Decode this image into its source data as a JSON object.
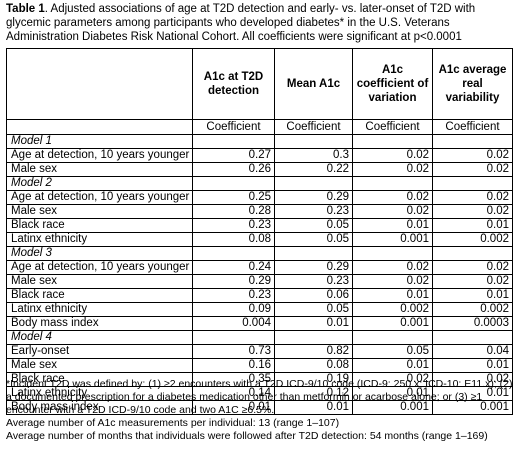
{
  "caption": {
    "label": "Table 1",
    "text": ". Adjusted associations of age at T2D detection and early- vs. later-onset of T2D with glycemic parameters among participants who developed diabetes* in the U.S. Veterans Administration Diabetes Risk National Cohort. All coefficients were significant at p<0.0001"
  },
  "columns": [
    "A1c at T2D detection",
    "Mean A1c",
    "A1c coefficient of variation",
    "A1c average real variability"
  ],
  "subheader": [
    "Coefficient",
    "Coefficient",
    "Coefficient",
    "Coefficient"
  ],
  "models": [
    {
      "name": "Model 1",
      "rows": [
        {
          "label": "Age at detection, 10 years younger",
          "values": [
            "0.27",
            "0.3",
            "0.02",
            "0.02"
          ]
        },
        {
          "label": "Male sex",
          "values": [
            "0.26",
            "0.22",
            "0.02",
            "0.02"
          ]
        }
      ]
    },
    {
      "name": "Model 2",
      "rows": [
        {
          "label": "Age at detection, 10 years younger",
          "values": [
            "0.25",
            "0.29",
            "0.02",
            "0.02"
          ]
        },
        {
          "label": "Male sex",
          "values": [
            "0.28",
            "0.23",
            "0.02",
            "0.02"
          ]
        },
        {
          "label": "Black race",
          "values": [
            "0.23",
            "0.05",
            "0.01",
            "0.01"
          ]
        },
        {
          "label": "Latinx ethnicity",
          "values": [
            "0.08",
            "0.05",
            "0.001",
            "0.002"
          ]
        }
      ]
    },
    {
      "name": "Model 3",
      "rows": [
        {
          "label": "Age at detection, 10 years younger",
          "values": [
            "0.24",
            "0.29",
            "0.02",
            "0.02"
          ]
        },
        {
          "label": "Male sex",
          "values": [
            "0.29",
            "0.23",
            "0.02",
            "0.02"
          ]
        },
        {
          "label": "Black race",
          "values": [
            "0.23",
            "0.06",
            "0.01",
            "0.01"
          ]
        },
        {
          "label": "Latinx ethnicity",
          "values": [
            "0.09",
            "0.05",
            "0.002",
            "0.002"
          ]
        },
        {
          "label": "Body mass index",
          "values": [
            "0.004",
            "0.01",
            "0.001",
            "0.0003"
          ]
        }
      ]
    },
    {
      "name": "Model 4",
      "rows": [
        {
          "label": "Early-onset",
          "values": [
            "0.73",
            "0.82",
            "0.05",
            "0.04"
          ]
        },
        {
          "label": "Male sex",
          "values": [
            "0.16",
            "0.08",
            "0.01",
            "0.01"
          ]
        },
        {
          "label": "Black race",
          "values": [
            "0.35",
            "0.19",
            "0.02",
            "0.02"
          ]
        },
        {
          "label": "Latinx ethnicity",
          "values": [
            "0.14",
            "0.12",
            "0.01",
            "0.01"
          ]
        },
        {
          "label": "Body mass index",
          "values": [
            "0.01",
            "0.01",
            "0.001",
            "0.001"
          ]
        }
      ]
    }
  ],
  "footnotes": [
    "*Incident T2D was defined by: (1) ≥2 encounters with a T2D ICD-9/10 code (ICD-9: 250.x; ICD-10: E11.x); (2) a documented prescription for a diabetes medication other than metformin or acarbose alone; or (3) ≥1 encounter with a T2D ICD-9/10 code and two A1C ≥6.5%.",
    "Average number of A1c measurements per individual: 13 (range 1–107)",
    "Average number of months that individuals were followed after T2D detection: 54 months (range 1–169)"
  ]
}
